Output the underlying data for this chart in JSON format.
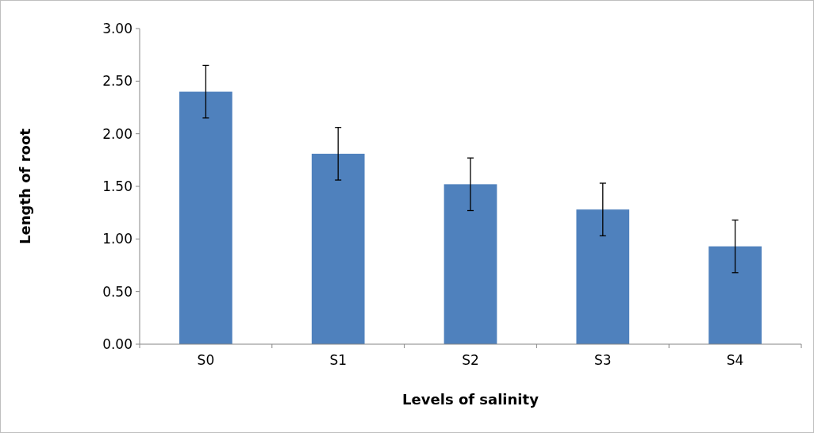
{
  "chart_data": {
    "type": "bar",
    "xlabel": "Levels of salinity",
    "ylabel": "Length of root",
    "categories": [
      "S0",
      "S1",
      "S2",
      "S3",
      "S4"
    ],
    "values": [
      2.4,
      1.81,
      1.52,
      1.28,
      0.93
    ],
    "errors": [
      0.25,
      0.25,
      0.25,
      0.25,
      0.25
    ],
    "color": "#4f81bd",
    "ylim": [
      0,
      3
    ],
    "yticks": [
      {
        "value": 0,
        "label": "0.00"
      },
      {
        "value": 0.5,
        "label": "0.50"
      },
      {
        "value": 1,
        "label": "1.00"
      },
      {
        "value": 1.5,
        "label": "1.50"
      },
      {
        "value": 2,
        "label": "2.00"
      },
      {
        "value": 2.5,
        "label": "2.50"
      },
      {
        "value": 3,
        "label": "3.00"
      }
    ],
    "grid": false
  }
}
